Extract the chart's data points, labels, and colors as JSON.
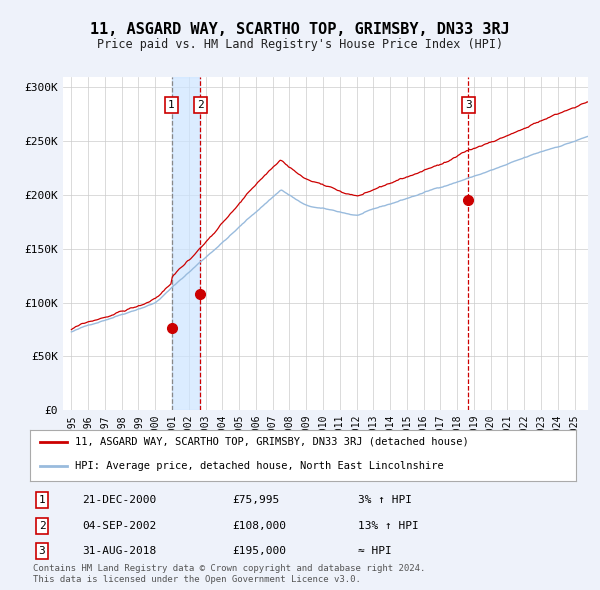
{
  "title": "11, ASGARD WAY, SCARTHO TOP, GRIMSBY, DN33 3RJ",
  "subtitle": "Price paid vs. HM Land Registry's House Price Index (HPI)",
  "legend_line1": "11, ASGARD WAY, SCARTHO TOP, GRIMSBY, DN33 3RJ (detached house)",
  "legend_line2": "HPI: Average price, detached house, North East Lincolnshire",
  "footnote1": "Contains HM Land Registry data © Crown copyright and database right 2024.",
  "footnote2": "This data is licensed under the Open Government Licence v3.0.",
  "bg_color": "#eef2fa",
  "plot_bg": "#ffffff",
  "red_line_color": "#cc0000",
  "blue_line_color": "#99bbdd",
  "grid_color": "#cccccc",
  "vline1_x": 2000.97,
  "vline2_x": 2002.68,
  "vline3_x": 2018.66,
  "shade_start": 2000.97,
  "shade_end": 2002.68,
  "ylim_min": 0,
  "ylim_max": 310000,
  "xlim_min": 1994.5,
  "xlim_max": 2025.8,
  "yticks": [
    0,
    50000,
    100000,
    150000,
    200000,
    250000,
    300000
  ],
  "ytick_labels": [
    "£0",
    "£50K",
    "£100K",
    "£150K",
    "£200K",
    "£250K",
    "£300K"
  ],
  "xticks": [
    1995,
    1996,
    1997,
    1998,
    1999,
    2000,
    2001,
    2002,
    2003,
    2004,
    2005,
    2006,
    2007,
    2008,
    2009,
    2010,
    2011,
    2012,
    2013,
    2014,
    2015,
    2016,
    2017,
    2018,
    2019,
    2020,
    2021,
    2022,
    2023,
    2024,
    2025
  ],
  "t1_x": 2000.97,
  "t1_y": 75995,
  "t2_x": 2002.68,
  "t2_y": 108000,
  "t3_x": 2018.66,
  "t3_y": 195000,
  "rows": [
    [
      1,
      "21-DEC-2000",
      "£75,995",
      "3% ↑ HPI"
    ],
    [
      2,
      "04-SEP-2002",
      "£108,000",
      "13% ↑ HPI"
    ],
    [
      3,
      "31-AUG-2018",
      "£195,000",
      "≈ HPI"
    ]
  ]
}
